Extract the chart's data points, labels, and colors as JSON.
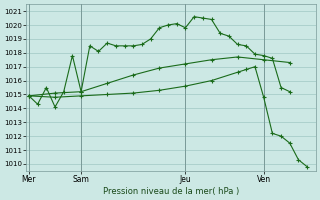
{
  "background_color": "#cce8e4",
  "grid_color": "#a0c8c4",
  "line_color": "#1a6b1a",
  "marker_color": "#1a6b1a",
  "xlabel_text": "Pression niveau de la mer( hPa )",
  "xtick_labels": [
    "Mer",
    "Sam",
    "Jeu",
    "Ven"
  ],
  "xtick_positions": [
    0,
    6,
    18,
    27
  ],
  "ylim": [
    1009.5,
    1021.5
  ],
  "yticks": [
    1010,
    1011,
    1012,
    1013,
    1014,
    1015,
    1016,
    1017,
    1018,
    1019,
    1020,
    1021
  ],
  "vline_positions": [
    0,
    6,
    18,
    27
  ],
  "xlim": [
    -0.3,
    33
  ],
  "series1_x": [
    0,
    1,
    2,
    3,
    4,
    5,
    6,
    7,
    8,
    9,
    10,
    11,
    12,
    13,
    14,
    15,
    16,
    17,
    18,
    19,
    20,
    21,
    22,
    23,
    24,
    25,
    26,
    27,
    28,
    29,
    30
  ],
  "series1_y": [
    1014.9,
    1014.3,
    1015.5,
    1014.1,
    1015.2,
    1017.8,
    1015.2,
    1018.5,
    1018.1,
    1018.7,
    1018.5,
    1018.5,
    1018.5,
    1018.6,
    1019.0,
    1019.8,
    1020.0,
    1020.1,
    1019.8,
    1020.6,
    1020.5,
    1020.4,
    1019.4,
    1019.2,
    1018.6,
    1018.5,
    1017.9,
    1017.8,
    1017.6,
    1015.5,
    1015.2
  ],
  "series2_x": [
    0,
    3,
    6,
    9,
    12,
    15,
    18,
    21,
    24,
    27,
    30
  ],
  "series2_y": [
    1014.9,
    1015.1,
    1015.2,
    1015.8,
    1016.4,
    1016.9,
    1017.2,
    1017.5,
    1017.7,
    1017.5,
    1017.3
  ],
  "series3_x": [
    0,
    3,
    6,
    9,
    12,
    15,
    18,
    21,
    24,
    25,
    26,
    27,
    28,
    29,
    30,
    31,
    32
  ],
  "series3_y": [
    1014.9,
    1014.8,
    1014.9,
    1015.0,
    1015.1,
    1015.3,
    1015.6,
    1016.0,
    1016.6,
    1016.8,
    1017.0,
    1014.8,
    1012.2,
    1012.0,
    1011.5,
    1010.3,
    1009.8
  ]
}
